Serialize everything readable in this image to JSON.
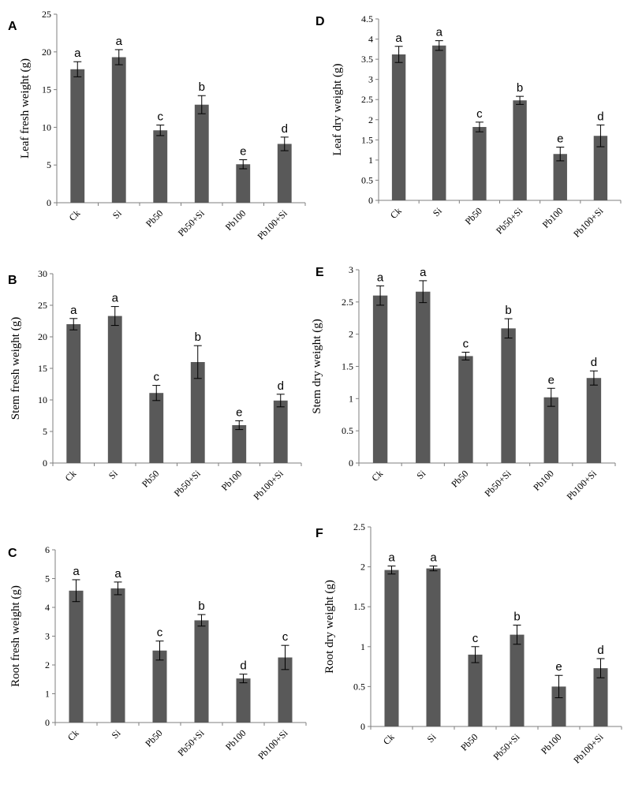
{
  "chart_data": [
    {
      "panel": "A",
      "type": "bar",
      "categories": [
        "Ck",
        "Si",
        "Pb50",
        "Pb50+Si",
        "Pb100",
        "Pb100+Si"
      ],
      "values": [
        17.7,
        19.3,
        9.6,
        13.0,
        5.1,
        7.8
      ],
      "errors": [
        1.0,
        1.0,
        0.7,
        1.2,
        0.6,
        0.9
      ],
      "significance": [
        "a",
        "a",
        "c",
        "b",
        "e",
        "d"
      ],
      "ylabel": "Leaf fresh weight (g)",
      "ylim": [
        0,
        25
      ],
      "yticks": [
        0,
        5,
        10,
        15,
        20,
        25
      ],
      "ytick_labels": [
        "0",
        "5",
        "10",
        "15",
        "20",
        "25"
      ]
    },
    {
      "panel": "D",
      "type": "bar",
      "categories": [
        "Ck",
        "Si",
        "Pb50",
        "Pb50+Si",
        "Pb100",
        "Pb100+Si"
      ],
      "values": [
        3.62,
        3.84,
        1.82,
        2.48,
        1.15,
        1.6
      ],
      "errors": [
        0.2,
        0.12,
        0.12,
        0.1,
        0.17,
        0.27
      ],
      "significance": [
        "a",
        "a",
        "c",
        "b",
        "e",
        "d"
      ],
      "ylabel": "Leaf dry weight (g)",
      "ylim": [
        0,
        4.5
      ],
      "yticks": [
        0,
        0.5,
        1,
        1.5,
        2,
        2.5,
        3,
        3.5,
        4,
        4.5
      ],
      "ytick_labels": [
        "0",
        "0.5",
        "1",
        "1.5",
        "2",
        "2.5",
        "3",
        "3.5",
        "4",
        "4.5"
      ]
    },
    {
      "panel": "B",
      "type": "bar",
      "categories": [
        "Ck",
        "Si",
        "Pb50",
        "Pb50+Si",
        "Pb100",
        "Pb100+Si"
      ],
      "values": [
        22.0,
        23.3,
        11.1,
        16.0,
        6.0,
        9.9
      ],
      "errors": [
        0.9,
        1.5,
        1.2,
        2.6,
        0.7,
        1.0
      ],
      "significance": [
        "a",
        "a",
        "c",
        "b",
        "e",
        "d"
      ],
      "ylabel": "Stem fresh weight (g)",
      "ylim": [
        0,
        30
      ],
      "yticks": [
        0,
        5,
        10,
        15,
        20,
        25,
        30
      ],
      "ytick_labels": [
        "0",
        "5",
        "10",
        "15",
        "20",
        "25",
        "30"
      ]
    },
    {
      "panel": "E",
      "type": "bar",
      "categories": [
        "Ck",
        "Si",
        "Pb50",
        "Pb50+Si",
        "Pb100",
        "Pb100+Si"
      ],
      "values": [
        2.6,
        2.66,
        1.66,
        2.09,
        1.02,
        1.32
      ],
      "errors": [
        0.15,
        0.17,
        0.06,
        0.15,
        0.14,
        0.11
      ],
      "significance": [
        "a",
        "a",
        "c",
        "b",
        "e",
        "d"
      ],
      "ylabel": "Stem dry weight (g)",
      "ylim": [
        0,
        3
      ],
      "yticks": [
        0,
        0.5,
        1,
        1.5,
        2,
        2.5,
        3
      ],
      "ytick_labels": [
        "0",
        "0.5",
        "1",
        "1.5",
        "2",
        "2.5",
        "3"
      ]
    },
    {
      "panel": "C",
      "type": "bar",
      "categories": [
        "Ck",
        "Si",
        "Pb50",
        "Pb50+Si",
        "Pb100",
        "Pb100+Si"
      ],
      "values": [
        4.58,
        4.66,
        2.5,
        3.55,
        1.53,
        2.26
      ],
      "errors": [
        0.38,
        0.22,
        0.33,
        0.2,
        0.15,
        0.42
      ],
      "significance": [
        "a",
        "a",
        "c",
        "b",
        "d",
        "c"
      ],
      "ylabel": "Root fresh weight (g)",
      "ylim": [
        0,
        6
      ],
      "yticks": [
        0,
        1,
        2,
        3,
        4,
        5,
        6
      ],
      "ytick_labels": [
        "0",
        "1",
        "2",
        "3",
        "4",
        "5",
        "6"
      ]
    },
    {
      "panel": "F",
      "type": "bar",
      "categories": [
        "Ck",
        "Si",
        "Pb50",
        "Pb50+Si",
        "Pb100",
        "Pb100+Si"
      ],
      "values": [
        1.96,
        1.98,
        0.9,
        1.15,
        0.5,
        0.73
      ],
      "errors": [
        0.05,
        0.03,
        0.1,
        0.12,
        0.14,
        0.12
      ],
      "significance": [
        "a",
        "a",
        "c",
        "b",
        "e",
        "d"
      ],
      "ylabel": "Root dry weight (g)",
      "ylim": [
        0,
        2.5
      ],
      "yticks": [
        0,
        0.5,
        1,
        1.5,
        2,
        2.5
      ],
      "ytick_labels": [
        "0",
        "0.5",
        "1",
        "1.5",
        "2",
        "2.5"
      ]
    }
  ],
  "colors": {
    "bar": "#595959",
    "axis": "#7f7f7f",
    "error_bar": "#000000"
  }
}
